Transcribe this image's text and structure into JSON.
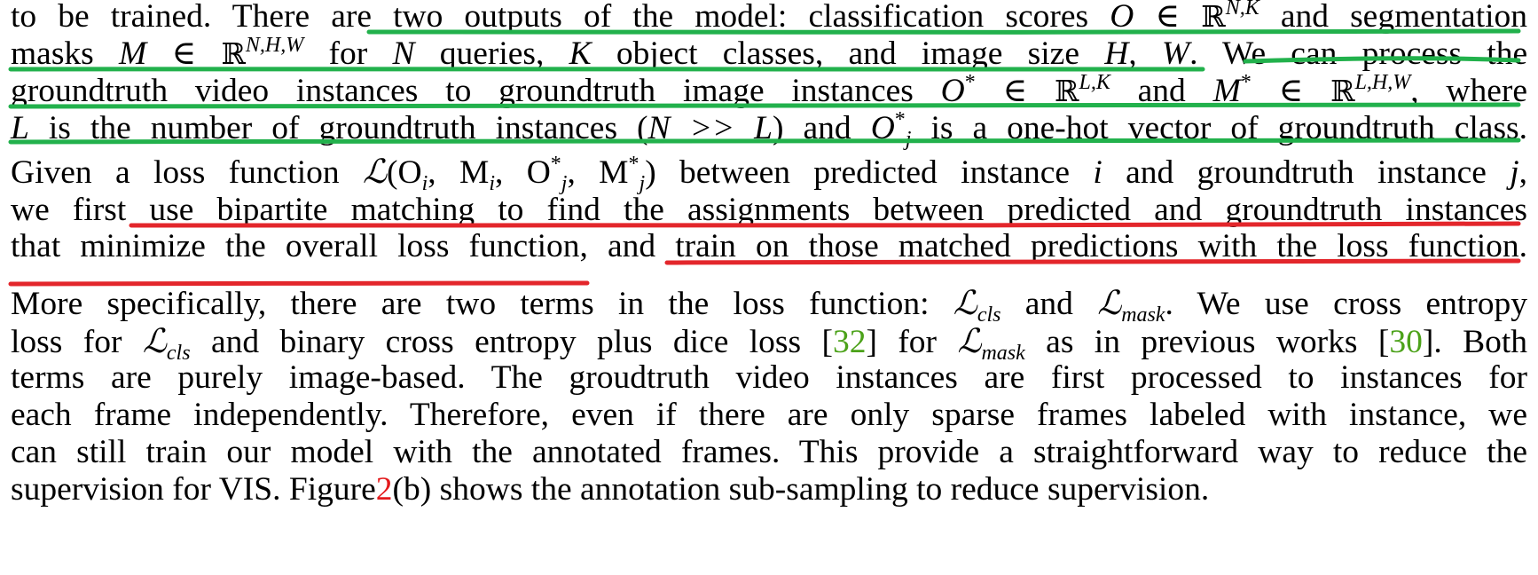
{
  "paragraph1": {
    "line1": {
      "a": "to be trained. There are",
      "b": "two outputs of the model: classification scores",
      "c": "and segmentation"
    },
    "line2": {
      "a": "masks",
      "b": "for",
      "c": "queries,",
      "d": "object classes, and image size",
      "e": ". We can",
      "f": "process the"
    },
    "line3": {
      "a": "groundtruth video instances to groundtruth image instances",
      "b": "and",
      "c": ", where"
    },
    "line4": {
      "a": "is the number of groundtruth instances (",
      "b": ") and",
      "c": "is a one-hot vector of groundtruth class."
    },
    "line5": {
      "a": "Given a loss function",
      "b": "between predicted instance",
      "c": "and groundtruth instance"
    },
    "line6": {
      "a": "we first",
      "b": "use bipartite matching to find the assignments between predicted and groundtruth instances"
    },
    "line7": {
      "a": "that minimize the overall loss function",
      "b": ", and",
      "c": "train on those matched predictions with the loss function",
      "d": "."
    }
  },
  "paragraph2": {
    "line1": {
      "a": "More specifically, there are two terms in the loss function:",
      "b": "and",
      "c": ". We use cross entropy"
    },
    "line2": {
      "a": "loss for",
      "b": "and binary cross entropy plus dice loss [",
      "c": "32",
      "d": "] for",
      "e": "as in previous works [",
      "f": "30",
      "g": "]. Both"
    },
    "line3": "terms are purely image-based. The groudtruth video instances are first processed to instances for",
    "line4": "each frame independently. Therefore, even if there are only sparse frames labeled with instance, we",
    "line5": "can still train our model with the annotated frames. This provide a straightforward way to reduce the",
    "line6": {
      "a": "supervision for VIS. Figure",
      "b": "2",
      "c": "(b) shows the annotation sub-sampling to reduce supervision."
    }
  },
  "math": {
    "O": "O",
    "in": "∈",
    "R": "ℝ",
    "NK": "N,K",
    "M": "M",
    "NHW": "N,H,W",
    "N": "N",
    "K": "K",
    "HW": "H, W",
    "Ostar": "O",
    "star": "*",
    "LK": "L,K",
    "Mstar": "M",
    "LHW": "L,H,W",
    "L": "L",
    "NggL": "N >> L",
    "Oj": "O",
    "j": "j",
    "Lcal": "ℒ",
    "lossargs": "(O",
    "i": "i",
    "commaM": ", M",
    "commaO": ", O",
    "close": ")",
    "cls": "cls",
    "mask": "mask"
  },
  "colors": {
    "green_underline": "#22b14c",
    "red_underline": "#e3262b",
    "citation": "#4ca21a",
    "figure_ref": "#e31a1c"
  }
}
